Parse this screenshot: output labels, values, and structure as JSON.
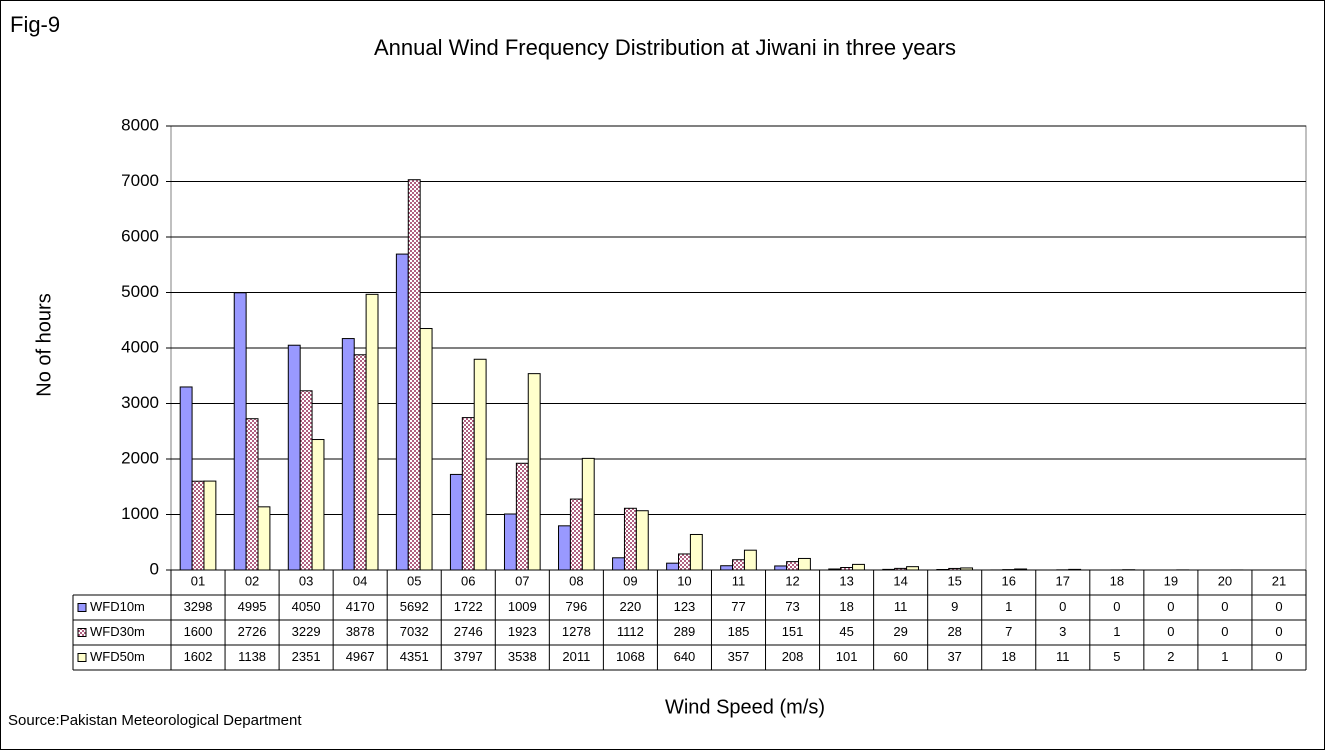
{
  "chart_data": {
    "type": "bar",
    "figure_label": "Fig-9",
    "title": "Annual Wind Frequency Distribution at Jiwani in three years",
    "y_label": "No of hours",
    "x_label": "Wind Speed (m/s)",
    "source": "Source:Pakistan Meteorological Department",
    "categories": [
      "01",
      "02",
      "03",
      "04",
      "05",
      "06",
      "07",
      "08",
      "09",
      "10",
      "11",
      "12",
      "13",
      "14",
      "15",
      "16",
      "17",
      "18",
      "19",
      "20",
      "21"
    ],
    "series": [
      {
        "name": "WFD10m",
        "color": "#9999ff",
        "values": [
          3298,
          4995,
          4050,
          4170,
          5692,
          1722,
          1009,
          796,
          220,
          123,
          77,
          73,
          18,
          11,
          9,
          1,
          0,
          0,
          0,
          0,
          0
        ]
      },
      {
        "name": "WFD30m",
        "color": "#d9a0b4",
        "values": [
          1600,
          2726,
          3229,
          3878,
          7032,
          2746,
          1923,
          1278,
          1112,
          289,
          185,
          151,
          45,
          29,
          28,
          7,
          3,
          1,
          0,
          0,
          0
        ]
      },
      {
        "name": "WFD50m",
        "color": "#ffffcc",
        "values": [
          1602,
          1138,
          2351,
          4967,
          4351,
          3797,
          3538,
          2011,
          1068,
          640,
          357,
          208,
          101,
          60,
          37,
          18,
          11,
          5,
          2,
          1,
          0
        ]
      }
    ],
    "ylim": [
      0,
      8000
    ],
    "yticks": [
      0,
      1000,
      2000,
      3000,
      4000,
      5000,
      6000,
      7000,
      8000
    ],
    "grid": true
  }
}
